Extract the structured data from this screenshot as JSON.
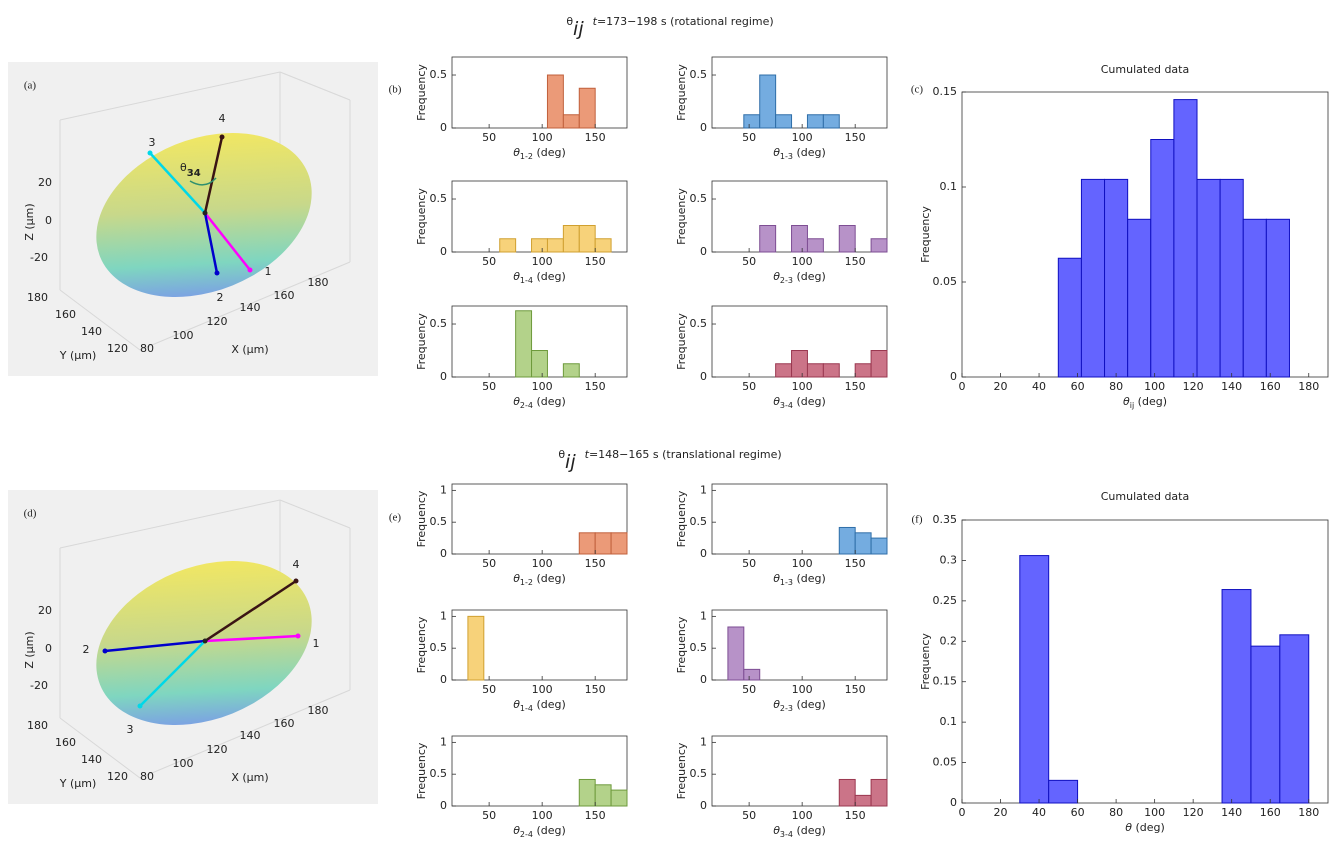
{
  "headings": [
    [
      "θ",
      "ij",
      "t",
      "=173−198 s (rotational regime)"
    ],
    [
      "θ",
      "ij",
      "t",
      "=148−165 s (translational regime)"
    ]
  ],
  "chart_data": [
    {
      "type": "ellipsoid",
      "panel": "(a)",
      "zticks": [
        "20",
        "0",
        "-20"
      ],
      "yticks": [
        "180",
        "160",
        "140",
        "120"
      ],
      "xticks": [
        "80",
        "100",
        "120",
        "140",
        "160",
        "180"
      ],
      "zlabel": "Z (μm)",
      "ylabel": "Y (μm)",
      "xlabel": "X (μm)",
      "angle_label": [
        "θ",
        "34"
      ],
      "vectors": [
        {
          "label": "1",
          "color": "#ff00ff"
        },
        {
          "label": "2",
          "color": "#0000cc"
        },
        {
          "label": "3",
          "color": "#00d8e8"
        },
        {
          "label": "4",
          "color": "#3a1414"
        }
      ]
    },
    {
      "type": "histogram",
      "panel": "(b)",
      "bins": [
        105,
        120,
        135,
        150
      ],
      "values": [
        0.5,
        0.125,
        0.375
      ],
      "color": "#eb9a78",
      "edgecolor": "#c0603c",
      "xlim": [
        15,
        180
      ],
      "xticks": [
        50,
        100,
        150
      ],
      "ylim": [
        0,
        0.67
      ],
      "yticks": [
        0,
        0.5
      ],
      "ylabel": "Frequency",
      "xlabel": [
        "θ",
        "1-2",
        " (deg)"
      ]
    },
    {
      "type": "histogram",
      "bins": [
        45,
        60,
        75,
        90,
        105,
        120,
        135
      ],
      "values": [
        0.125,
        0.5,
        0.125,
        0,
        0.125,
        0.125
      ],
      "color": "#74ace0",
      "edgecolor": "#2f6ea8",
      "xlim": [
        15,
        180
      ],
      "xticks": [
        50,
        100,
        150
      ],
      "ylim": [
        0,
        0.67
      ],
      "yticks": [
        0,
        0.5
      ],
      "ylabel": "Frequency",
      "xlabel": [
        "θ",
        "1-3",
        " (deg)"
      ]
    },
    {
      "type": "histogram",
      "bins": [
        60,
        75,
        90,
        105,
        120,
        135,
        150,
        165
      ],
      "values": [
        0.125,
        0,
        0.125,
        0.125,
        0.25,
        0.25,
        0.125
      ],
      "color": "#f7d27a",
      "edgecolor": "#d0a030",
      "xlim": [
        15,
        180
      ],
      "xticks": [
        50,
        100,
        150
      ],
      "ylim": [
        0,
        0.67
      ],
      "yticks": [
        0,
        0.5
      ],
      "ylabel": "Frequency",
      "xlabel": [
        "θ",
        "1-4",
        " (deg)"
      ]
    },
    {
      "type": "histogram",
      "bins": [
        60,
        75,
        90,
        105,
        120,
        135,
        150,
        165,
        180
      ],
      "values": [
        0.25,
        0,
        0.25,
        0.125,
        0,
        0.25,
        0,
        0.125
      ],
      "color": "#b792c8",
      "edgecolor": "#7d4d93",
      "xlim": [
        15,
        180
      ],
      "xticks": [
        50,
        100,
        150
      ],
      "ylim": [
        0,
        0.67
      ],
      "yticks": [
        0,
        0.5
      ],
      "ylabel": "Frequency",
      "xlabel": [
        "θ",
        "2-3",
        " (deg)"
      ]
    },
    {
      "type": "histogram",
      "bins": [
        75,
        90,
        105,
        120,
        135
      ],
      "values": [
        0.625,
        0.25,
        0,
        0.125
      ],
      "color": "#b3d28a",
      "edgecolor": "#6e9a3c",
      "xlim": [
        15,
        180
      ],
      "xticks": [
        50,
        100,
        150
      ],
      "ylim": [
        0,
        0.67
      ],
      "yticks": [
        0,
        0.5
      ],
      "ylabel": "Frequency",
      "xlabel": [
        "θ",
        "2-4",
        " (deg)"
      ]
    },
    {
      "type": "histogram",
      "bins": [
        75,
        90,
        105,
        120,
        135,
        150,
        165,
        180
      ],
      "values": [
        0.125,
        0.25,
        0.125,
        0.125,
        0,
        0.125,
        0.25
      ],
      "color": "#cb7488",
      "edgecolor": "#9a3850",
      "xlim": [
        15,
        180
      ],
      "xticks": [
        50,
        100,
        150
      ],
      "ylim": [
        0,
        0.67
      ],
      "yticks": [
        0,
        0.5
      ],
      "ylabel": "Frequency",
      "xlabel": [
        "θ",
        "3-4",
        " (deg)"
      ]
    },
    {
      "type": "histogram",
      "panel": "(c)",
      "title": "Cumulated data",
      "bins": [
        50,
        62,
        74,
        86,
        98,
        110,
        122,
        134,
        146,
        158,
        170
      ],
      "values": [
        0.0625,
        0.104,
        0.104,
        0.083,
        0.125,
        0.146,
        0.104,
        0.104,
        0.083,
        0.083
      ],
      "color": "#6464ff",
      "edgecolor": "#1010c0",
      "xlim": [
        0,
        190
      ],
      "xticks": [
        0,
        20,
        40,
        60,
        80,
        100,
        120,
        140,
        160,
        180
      ],
      "ylim": [
        0,
        0.15
      ],
      "yticks": [
        0,
        0.05,
        0.1,
        0.15
      ],
      "ylabel": "Frequency",
      "xlabel": [
        "θ",
        "ij",
        " (deg)"
      ]
    },
    {
      "type": "ellipsoid",
      "panel": "(d)",
      "zticks": [
        "20",
        "0",
        "-20"
      ],
      "yticks": [
        "180",
        "160",
        "140",
        "120"
      ],
      "xticks": [
        "80",
        "100",
        "120",
        "140",
        "160",
        "180"
      ],
      "zlabel": "Z (μm)",
      "ylabel": "Y (μm)",
      "xlabel": "X (μm)",
      "vectors": [
        {
          "label": "1",
          "color": "#ff00ff"
        },
        {
          "label": "2",
          "color": "#0000cc"
        },
        {
          "label": "3",
          "color": "#00d8e8"
        },
        {
          "label": "4",
          "color": "#3a1414"
        }
      ]
    },
    {
      "type": "histogram",
      "panel": "(e)",
      "bins": [
        135,
        150,
        165,
        180
      ],
      "values": [
        0.333,
        0.333,
        0.333
      ],
      "color": "#eb9a78",
      "edgecolor": "#c0603c",
      "xlim": [
        15,
        180
      ],
      "xticks": [
        50,
        100,
        150
      ],
      "ylim": [
        0,
        1.1
      ],
      "yticks": [
        0,
        0.5,
        1
      ],
      "ylabel": "Frequency",
      "xlabel": [
        "θ",
        "1-2",
        " (deg)"
      ]
    },
    {
      "type": "histogram",
      "bins": [
        135,
        150,
        165,
        180
      ],
      "values": [
        0.417,
        0.333,
        0.25
      ],
      "color": "#74ace0",
      "edgecolor": "#2f6ea8",
      "xlim": [
        15,
        180
      ],
      "xticks": [
        50,
        100,
        150
      ],
      "ylim": [
        0,
        1.1
      ],
      "yticks": [
        0,
        0.5,
        1
      ],
      "ylabel": "Frequency",
      "xlabel": [
        "θ",
        "1-3",
        " (deg)"
      ]
    },
    {
      "type": "histogram",
      "bins": [
        30,
        45
      ],
      "values": [
        1
      ],
      "color": "#f7d27a",
      "edgecolor": "#d0a030",
      "xlim": [
        15,
        180
      ],
      "xticks": [
        50,
        100,
        150
      ],
      "ylim": [
        0,
        1.1
      ],
      "yticks": [
        0,
        0.5,
        1
      ],
      "ylabel": "Frequency",
      "xlabel": [
        "θ",
        "1-4",
        " (deg)"
      ]
    },
    {
      "type": "histogram",
      "bins": [
        30,
        45,
        60
      ],
      "values": [
        0.833,
        0.167
      ],
      "color": "#b792c8",
      "edgecolor": "#7d4d93",
      "xlim": [
        15,
        180
      ],
      "xticks": [
        50,
        100,
        150
      ],
      "ylim": [
        0,
        1.1
      ],
      "yticks": [
        0,
        0.5,
        1
      ],
      "ylabel": "Frequency",
      "xlabel": [
        "θ",
        "2-3",
        " (deg)"
      ]
    },
    {
      "type": "histogram",
      "bins": [
        135,
        150,
        165,
        180
      ],
      "values": [
        0.417,
        0.333,
        0.25
      ],
      "color": "#b3d28a",
      "edgecolor": "#6e9a3c",
      "xlim": [
        15,
        180
      ],
      "xticks": [
        50,
        100,
        150
      ],
      "ylim": [
        0,
        1.1
      ],
      "yticks": [
        0,
        0.5,
        1
      ],
      "ylabel": "Frequency",
      "xlabel": [
        "θ",
        "2-4",
        " (deg)"
      ]
    },
    {
      "type": "histogram",
      "bins": [
        135,
        150,
        165,
        180
      ],
      "values": [
        0.417,
        0.167,
        0.417
      ],
      "color": "#cb7488",
      "edgecolor": "#9a3850",
      "xlim": [
        15,
        180
      ],
      "xticks": [
        50,
        100,
        150
      ],
      "ylim": [
        0,
        1.1
      ],
      "yticks": [
        0,
        0.5,
        1
      ],
      "ylabel": "Frequency",
      "xlabel": [
        "θ",
        "3-4",
        " (deg)"
      ]
    },
    {
      "type": "histogram",
      "panel": "(f)",
      "title": "Cumulated data",
      "bins": [
        30,
        45,
        60,
        75,
        90,
        105,
        120,
        135,
        150,
        165,
        180
      ],
      "values": [
        0.306,
        0.028,
        0,
        0,
        0,
        0,
        0,
        0.264,
        0.194,
        0.208
      ],
      "color": "#6464ff",
      "edgecolor": "#1010c0",
      "xlim": [
        0,
        190
      ],
      "xticks": [
        0,
        20,
        40,
        60,
        80,
        100,
        120,
        140,
        160,
        180
      ],
      "ylim": [
        0,
        0.35
      ],
      "yticks": [
        0,
        0.05,
        0.1,
        0.15,
        0.2,
        0.25,
        0.3,
        0.35
      ],
      "ylabel": "Frequency",
      "xlabel": [
        "θ",
        " (deg)"
      ]
    }
  ]
}
